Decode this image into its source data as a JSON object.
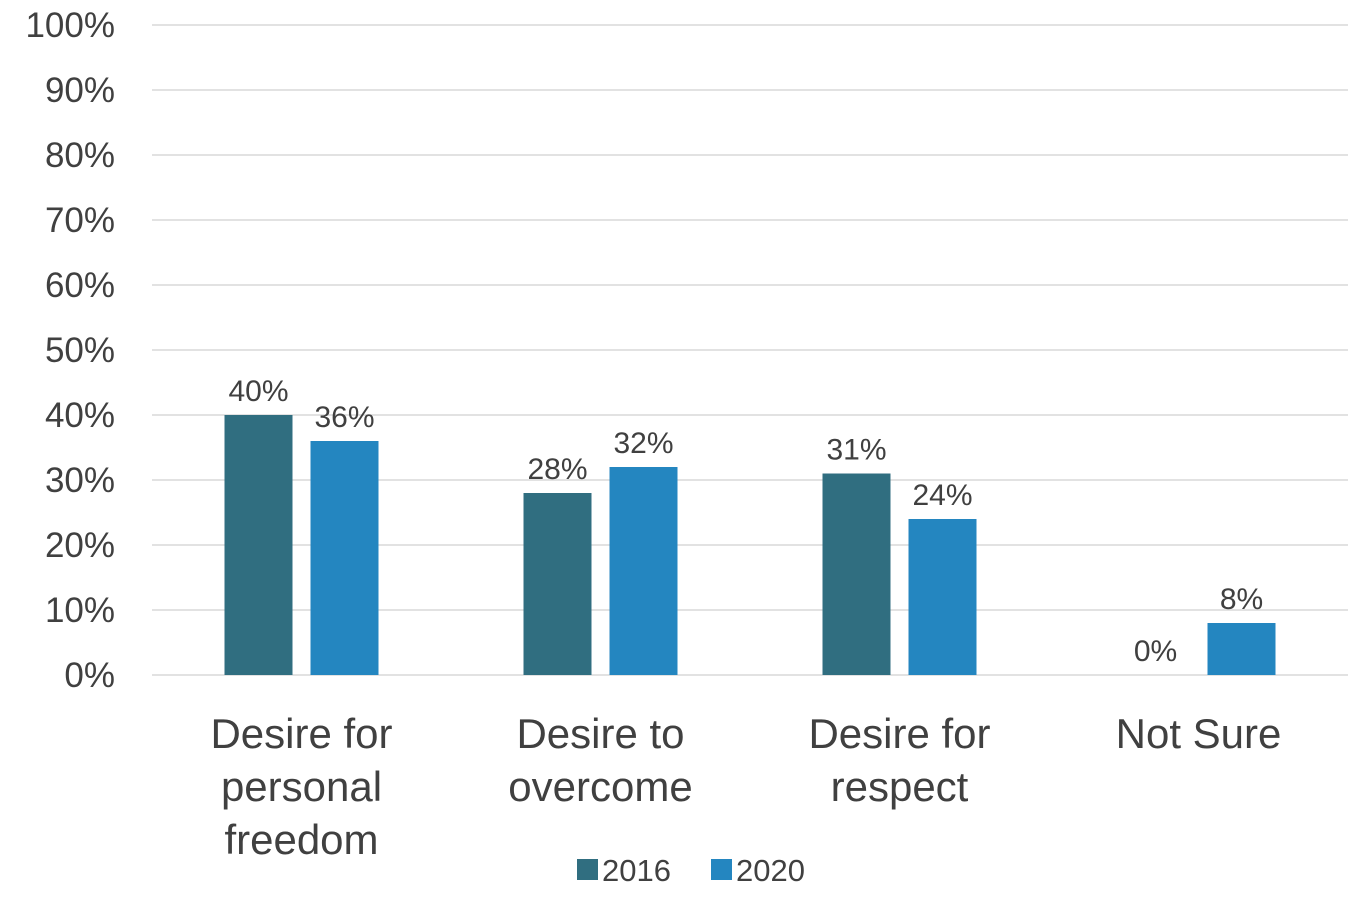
{
  "chart_data": {
    "type": "bar",
    "categories": [
      [
        "Desire for",
        "personal",
        "freedom"
      ],
      [
        "Desire to",
        "overcome"
      ],
      [
        "Desire for",
        "respect"
      ],
      [
        "Not Sure"
      ]
    ],
    "series": [
      {
        "name": "2016",
        "color": "#306e80",
        "values": [
          40,
          28,
          31,
          0
        ],
        "labels": [
          "40%",
          "28%",
          "31%",
          "0%"
        ]
      },
      {
        "name": "2020",
        "color": "#2486c0",
        "values": [
          36,
          32,
          24,
          8
        ],
        "labels": [
          "36%",
          "32%",
          "24%",
          "8%"
        ]
      }
    ],
    "y_ticks": [
      "0%",
      "10%",
      "20%",
      "30%",
      "40%",
      "50%",
      "60%",
      "70%",
      "80%",
      "90%",
      "100%"
    ],
    "ylim": [
      0,
      100
    ],
    "grid": true,
    "legend": "bottom",
    "title": "",
    "xlabel": "",
    "ylabel": ""
  }
}
